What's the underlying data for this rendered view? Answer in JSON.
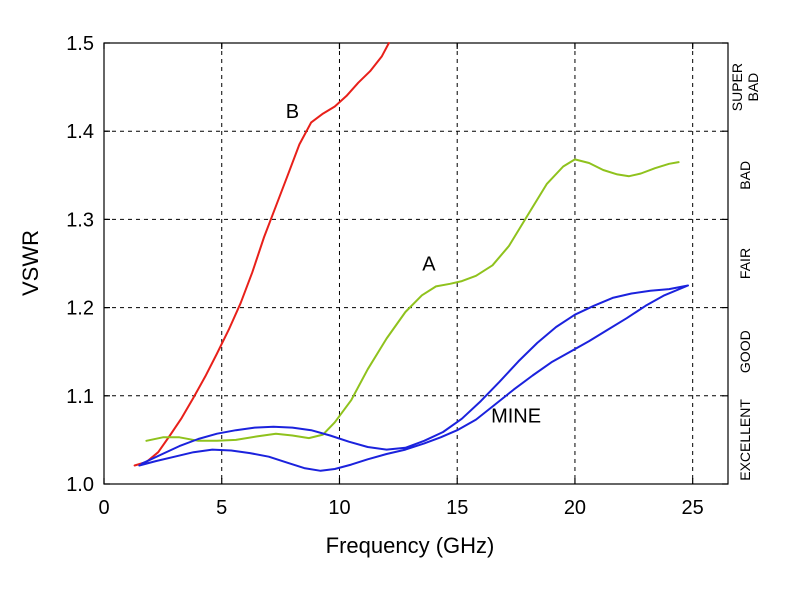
{
  "chart_data": {
    "type": "line",
    "xlabel": "Frequency (GHz)",
    "ylabel": "VSWR",
    "xlim": [
      0,
      26.5
    ],
    "ylim": [
      1.0,
      1.5
    ],
    "xticks": [
      0,
      5,
      10,
      15,
      20,
      25
    ],
    "yticks": [
      1.0,
      1.1,
      1.2,
      1.3,
      1.4,
      1.5
    ],
    "xtick_labels": [
      "0",
      "5",
      "10",
      "15",
      "20",
      "25"
    ],
    "ytick_labels": [
      "1.0",
      "1.1",
      "1.2",
      "1.3",
      "1.4",
      "1.5"
    ],
    "grid": true,
    "quality_bands": [
      {
        "label_lines": [
          "EXCELLENT"
        ],
        "ymin": 1.0,
        "ymax": 1.1
      },
      {
        "label_lines": [
          "GOOD"
        ],
        "ymin": 1.1,
        "ymax": 1.2
      },
      {
        "label_lines": [
          "FAIR"
        ],
        "ymin": 1.2,
        "ymax": 1.3
      },
      {
        "label_lines": [
          "BAD"
        ],
        "ymin": 1.3,
        "ymax": 1.4
      },
      {
        "label_lines": [
          "SUPER",
          "BAD"
        ],
        "ymin": 1.4,
        "ymax": 1.5
      }
    ],
    "series": [
      {
        "name": "B",
        "color": "#e8201a",
        "label_at": [
          8.0,
          1.415
        ],
        "points": [
          [
            1.3,
            1.021
          ],
          [
            1.8,
            1.025
          ],
          [
            2.3,
            1.036
          ],
          [
            2.8,
            1.055
          ],
          [
            3.3,
            1.075
          ],
          [
            3.8,
            1.098
          ],
          [
            4.3,
            1.122
          ],
          [
            4.8,
            1.148
          ],
          [
            5.3,
            1.175
          ],
          [
            5.8,
            1.205
          ],
          [
            6.3,
            1.24
          ],
          [
            6.8,
            1.28
          ],
          [
            7.3,
            1.315
          ],
          [
            7.8,
            1.35
          ],
          [
            8.3,
            1.385
          ],
          [
            8.8,
            1.41
          ],
          [
            9.3,
            1.42
          ],
          [
            9.8,
            1.428
          ],
          [
            10.3,
            1.44
          ],
          [
            10.8,
            1.455
          ],
          [
            11.3,
            1.468
          ],
          [
            11.8,
            1.485
          ],
          [
            12.1,
            1.5
          ]
        ]
      },
      {
        "name": "A",
        "color": "#8fc21d",
        "label_at": [
          13.8,
          1.242
        ],
        "points": [
          [
            1.8,
            1.049
          ],
          [
            2.5,
            1.053
          ],
          [
            3.2,
            1.053
          ],
          [
            4.0,
            1.049
          ],
          [
            4.8,
            1.049
          ],
          [
            5.6,
            1.05
          ],
          [
            6.5,
            1.054
          ],
          [
            7.3,
            1.057
          ],
          [
            8.0,
            1.055
          ],
          [
            8.7,
            1.052
          ],
          [
            9.3,
            1.056
          ],
          [
            9.8,
            1.07
          ],
          [
            10.5,
            1.095
          ],
          [
            11.2,
            1.13
          ],
          [
            12.0,
            1.165
          ],
          [
            12.8,
            1.195
          ],
          [
            13.5,
            1.214
          ],
          [
            14.1,
            1.224
          ],
          [
            14.7,
            1.227
          ],
          [
            15.2,
            1.23
          ],
          [
            15.8,
            1.236
          ],
          [
            16.5,
            1.248
          ],
          [
            17.2,
            1.27
          ],
          [
            18.0,
            1.305
          ],
          [
            18.8,
            1.34
          ],
          [
            19.5,
            1.36
          ],
          [
            20.0,
            1.368
          ],
          [
            20.6,
            1.364
          ],
          [
            21.2,
            1.356
          ],
          [
            21.8,
            1.351
          ],
          [
            22.3,
            1.349
          ],
          [
            22.8,
            1.352
          ],
          [
            23.4,
            1.358
          ],
          [
            24.0,
            1.363
          ],
          [
            24.4,
            1.365
          ]
        ]
      },
      {
        "name": "MINE",
        "color": "#1b22dd",
        "label_at": [
          17.5,
          1.07
        ],
        "points": [
          [
            1.5,
            1.021
          ],
          [
            2.2,
            1.026
          ],
          [
            3.0,
            1.031
          ],
          [
            3.8,
            1.036
          ],
          [
            4.6,
            1.039
          ],
          [
            5.4,
            1.038
          ],
          [
            6.2,
            1.035
          ],
          [
            7.0,
            1.031
          ],
          [
            7.8,
            1.024
          ],
          [
            8.5,
            1.018
          ],
          [
            9.2,
            1.015
          ],
          [
            9.8,
            1.017
          ],
          [
            10.5,
            1.022
          ],
          [
            11.2,
            1.028
          ],
          [
            12.0,
            1.034
          ],
          [
            12.8,
            1.039
          ],
          [
            13.6,
            1.046
          ],
          [
            14.3,
            1.053
          ],
          [
            15.0,
            1.061
          ],
          [
            15.8,
            1.073
          ],
          [
            16.6,
            1.09
          ],
          [
            17.4,
            1.107
          ],
          [
            18.2,
            1.123
          ],
          [
            19.0,
            1.138
          ],
          [
            19.8,
            1.15
          ],
          [
            20.6,
            1.162
          ],
          [
            21.4,
            1.175
          ],
          [
            22.2,
            1.188
          ],
          [
            23.0,
            1.202
          ],
          [
            23.8,
            1.214
          ],
          [
            24.8,
            1.225
          ],
          [
            24.0,
            1.221
          ],
          [
            23.2,
            1.219
          ],
          [
            22.4,
            1.216
          ],
          [
            21.6,
            1.211
          ],
          [
            20.8,
            1.202
          ],
          [
            20.0,
            1.192
          ],
          [
            19.2,
            1.178
          ],
          [
            18.4,
            1.16
          ],
          [
            17.6,
            1.139
          ],
          [
            16.8,
            1.116
          ],
          [
            16.0,
            1.094
          ],
          [
            15.2,
            1.074
          ],
          [
            14.4,
            1.059
          ],
          [
            13.6,
            1.049
          ],
          [
            12.8,
            1.041
          ],
          [
            12.0,
            1.039
          ],
          [
            11.2,
            1.042
          ],
          [
            10.4,
            1.048
          ],
          [
            9.6,
            1.055
          ],
          [
            8.8,
            1.061
          ],
          [
            8.0,
            1.064
          ],
          [
            7.2,
            1.065
          ],
          [
            6.4,
            1.064
          ],
          [
            5.6,
            1.061
          ],
          [
            4.8,
            1.057
          ],
          [
            4.0,
            1.051
          ],
          [
            3.2,
            1.043
          ],
          [
            2.4,
            1.033
          ],
          [
            1.6,
            1.023
          ]
        ]
      }
    ]
  }
}
